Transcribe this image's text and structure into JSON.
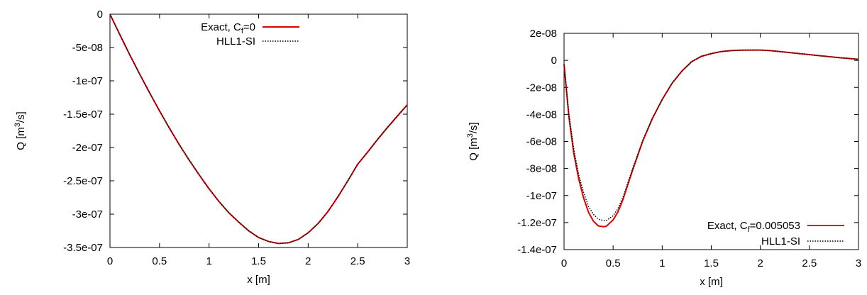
{
  "chart_data": [
    {
      "type": "line",
      "xlabel": "x [m]",
      "ylabel_main": "Q [m",
      "ylabel_sup": "3",
      "ylabel_end": "/s]",
      "xlim": [
        0,
        3
      ],
      "ylim": [
        -3.5e-07,
        0
      ],
      "xticks": [
        {
          "v": 0,
          "label": "0"
        },
        {
          "v": 0.5,
          "label": "0.5"
        },
        {
          "v": 1,
          "label": "1"
        },
        {
          "v": 1.5,
          "label": "1.5"
        },
        {
          "v": 2,
          "label": "2"
        },
        {
          "v": 2.5,
          "label": "2.5"
        },
        {
          "v": 3,
          "label": "3"
        }
      ],
      "yticks": [
        {
          "v": 0,
          "label": "0"
        },
        {
          "v": -5e-08,
          "label": "-5e-08"
        },
        {
          "v": -1e-07,
          "label": "-1e-07"
        },
        {
          "v": -1.5e-07,
          "label": "-1.5e-07"
        },
        {
          "v": -2e-07,
          "label": "-2e-07"
        },
        {
          "v": -2.5e-07,
          "label": "-2.5e-07"
        },
        {
          "v": -3e-07,
          "label": "-3e-07"
        },
        {
          "v": -3.5e-07,
          "label": "-3.5e-07"
        }
      ],
      "legend_position": "top-right",
      "series": [
        {
          "name_main": "Exact, C",
          "name_sub": "f",
          "name_end": "=0",
          "color": "#e00000",
          "style": "solid",
          "x": [
            0,
            0.1,
            0.2,
            0.3,
            0.4,
            0.5,
            0.6,
            0.7,
            0.8,
            0.9,
            1.0,
            1.1,
            1.2,
            1.3,
            1.4,
            1.5,
            1.6,
            1.7,
            1.8,
            1.9,
            2.0,
            2.1,
            2.2,
            2.3,
            2.4,
            2.5,
            2.6,
            2.7,
            2.8,
            2.9,
            3.0
          ],
          "y": [
            0,
            -3.1e-08,
            -6.1e-08,
            -9e-08,
            -1.18e-07,
            -1.45e-07,
            -1.71e-07,
            -1.96e-07,
            -2.19e-07,
            -2.41e-07,
            -2.62e-07,
            -2.81e-07,
            -2.98e-07,
            -3.12e-07,
            -3.25e-07,
            -3.35e-07,
            -3.41e-07,
            -3.44e-07,
            -3.43e-07,
            -3.38e-07,
            -3.28e-07,
            -3.14e-07,
            -2.96e-07,
            -2.74e-07,
            -2.5e-07,
            -2.25e-07,
            -2.07e-07,
            -1.88e-07,
            -1.7e-07,
            -1.53e-07,
            -1.36e-07
          ]
        },
        {
          "name_main": "HLL1-SI",
          "name_sub": "",
          "name_end": "",
          "color": "#000000",
          "style": "dotted",
          "x": [
            0,
            0.1,
            0.2,
            0.3,
            0.4,
            0.5,
            0.6,
            0.7,
            0.8,
            0.9,
            1.0,
            1.1,
            1.2,
            1.3,
            1.4,
            1.5,
            1.6,
            1.7,
            1.8,
            1.9,
            2.0,
            2.1,
            2.2,
            2.3,
            2.4,
            2.5,
            2.6,
            2.7,
            2.8,
            2.9,
            3.0
          ],
          "y": [
            0,
            -3.1e-08,
            -6.1e-08,
            -9e-08,
            -1.18e-07,
            -1.45e-07,
            -1.71e-07,
            -1.96e-07,
            -2.19e-07,
            -2.41e-07,
            -2.62e-07,
            -2.81e-07,
            -2.98e-07,
            -3.12e-07,
            -3.25e-07,
            -3.35e-07,
            -3.41e-07,
            -3.44e-07,
            -3.43e-07,
            -3.38e-07,
            -3.28e-07,
            -3.14e-07,
            -2.96e-07,
            -2.74e-07,
            -2.5e-07,
            -2.25e-07,
            -2.07e-07,
            -1.88e-07,
            -1.7e-07,
            -1.53e-07,
            -1.36e-07
          ]
        }
      ]
    },
    {
      "type": "line",
      "xlabel": "x [m]",
      "ylabel_main": "Q [m",
      "ylabel_sup": "3",
      "ylabel_end": "/s]",
      "xlim": [
        0,
        3
      ],
      "ylim": [
        -1.4e-07,
        2e-08
      ],
      "xticks": [
        {
          "v": 0,
          "label": "0"
        },
        {
          "v": 0.5,
          "label": "0.5"
        },
        {
          "v": 1,
          "label": "1"
        },
        {
          "v": 1.5,
          "label": "1.5"
        },
        {
          "v": 2,
          "label": "2"
        },
        {
          "v": 2.5,
          "label": "2.5"
        },
        {
          "v": 3,
          "label": "3"
        }
      ],
      "yticks": [
        {
          "v": 2e-08,
          "label": "2e-08"
        },
        {
          "v": 0,
          "label": "0"
        },
        {
          "v": -2e-08,
          "label": "-2e-08"
        },
        {
          "v": -4e-08,
          "label": "-4e-08"
        },
        {
          "v": -6e-08,
          "label": "-6e-08"
        },
        {
          "v": -8e-08,
          "label": "-8e-08"
        },
        {
          "v": -1e-07,
          "label": "-1e-07"
        },
        {
          "v": -1.2e-07,
          "label": "-1.2e-07"
        },
        {
          "v": -1.4e-07,
          "label": "-1.4e-07"
        }
      ],
      "legend_position": "bottom-right",
      "series": [
        {
          "name_main": "Exact, C",
          "name_sub": "f",
          "name_end": "=0.005053",
          "color": "#e00000",
          "style": "solid",
          "x": [
            0,
            0.05,
            0.1,
            0.15,
            0.2,
            0.25,
            0.3,
            0.35,
            0.4,
            0.43,
            0.5,
            0.55,
            0.6,
            0.7,
            0.8,
            0.9,
            1.0,
            1.1,
            1.2,
            1.3,
            1.4,
            1.5,
            1.6,
            1.7,
            1.8,
            1.9,
            2.0,
            2.1,
            2.2,
            2.4,
            2.6,
            2.8,
            3.0
          ],
          "y": [
            -3e-09,
            -4.2e-08,
            -6.9e-08,
            -8.8e-08,
            -1.02e-07,
            -1.125e-07,
            -1.19e-07,
            -1.225e-07,
            -1.23e-07,
            -1.228e-07,
            -1.18e-07,
            -1.12e-07,
            -1.03e-07,
            -8.1e-08,
            -6e-08,
            -4.3e-08,
            -2.9e-08,
            -1.7e-08,
            -8e-09,
            -1e-09,
            3e-09,
            5e-09,
            6.5e-09,
            7.2e-09,
            7.5e-09,
            7.6e-09,
            7.6e-09,
            7.2e-09,
            6.5e-09,
            5e-09,
            3.5e-09,
            2e-09,
            8e-10
          ]
        },
        {
          "name_main": "HLL1-SI",
          "name_sub": "",
          "name_end": "",
          "color": "#000000",
          "style": "dotted",
          "x": [
            0,
            0.05,
            0.1,
            0.15,
            0.2,
            0.25,
            0.3,
            0.35,
            0.4,
            0.43,
            0.5,
            0.55,
            0.6,
            0.7,
            0.8,
            0.9,
            1.0,
            1.1,
            1.2,
            1.3,
            1.4,
            1.5,
            1.6,
            1.7,
            1.8,
            1.9,
            2.0,
            2.1,
            2.2,
            2.4,
            2.6,
            2.8,
            3.0
          ],
          "y": [
            -3e-09,
            -4e-08,
            -6.6e-08,
            -8.5e-08,
            -9.8e-08,
            -1.08e-07,
            -1.14e-07,
            -1.175e-07,
            -1.185e-07,
            -1.185e-07,
            -1.15e-07,
            -1.095e-07,
            -1.01e-07,
            -8e-08,
            -5.95e-08,
            -4.3e-08,
            -2.9e-08,
            -1.7e-08,
            -8e-09,
            -1e-09,
            3e-09,
            5e-09,
            6.5e-09,
            7.2e-09,
            7.5e-09,
            7.6e-09,
            7.6e-09,
            7.2e-09,
            6.5e-09,
            5e-09,
            3.5e-09,
            2e-09,
            8e-10
          ]
        }
      ]
    }
  ]
}
